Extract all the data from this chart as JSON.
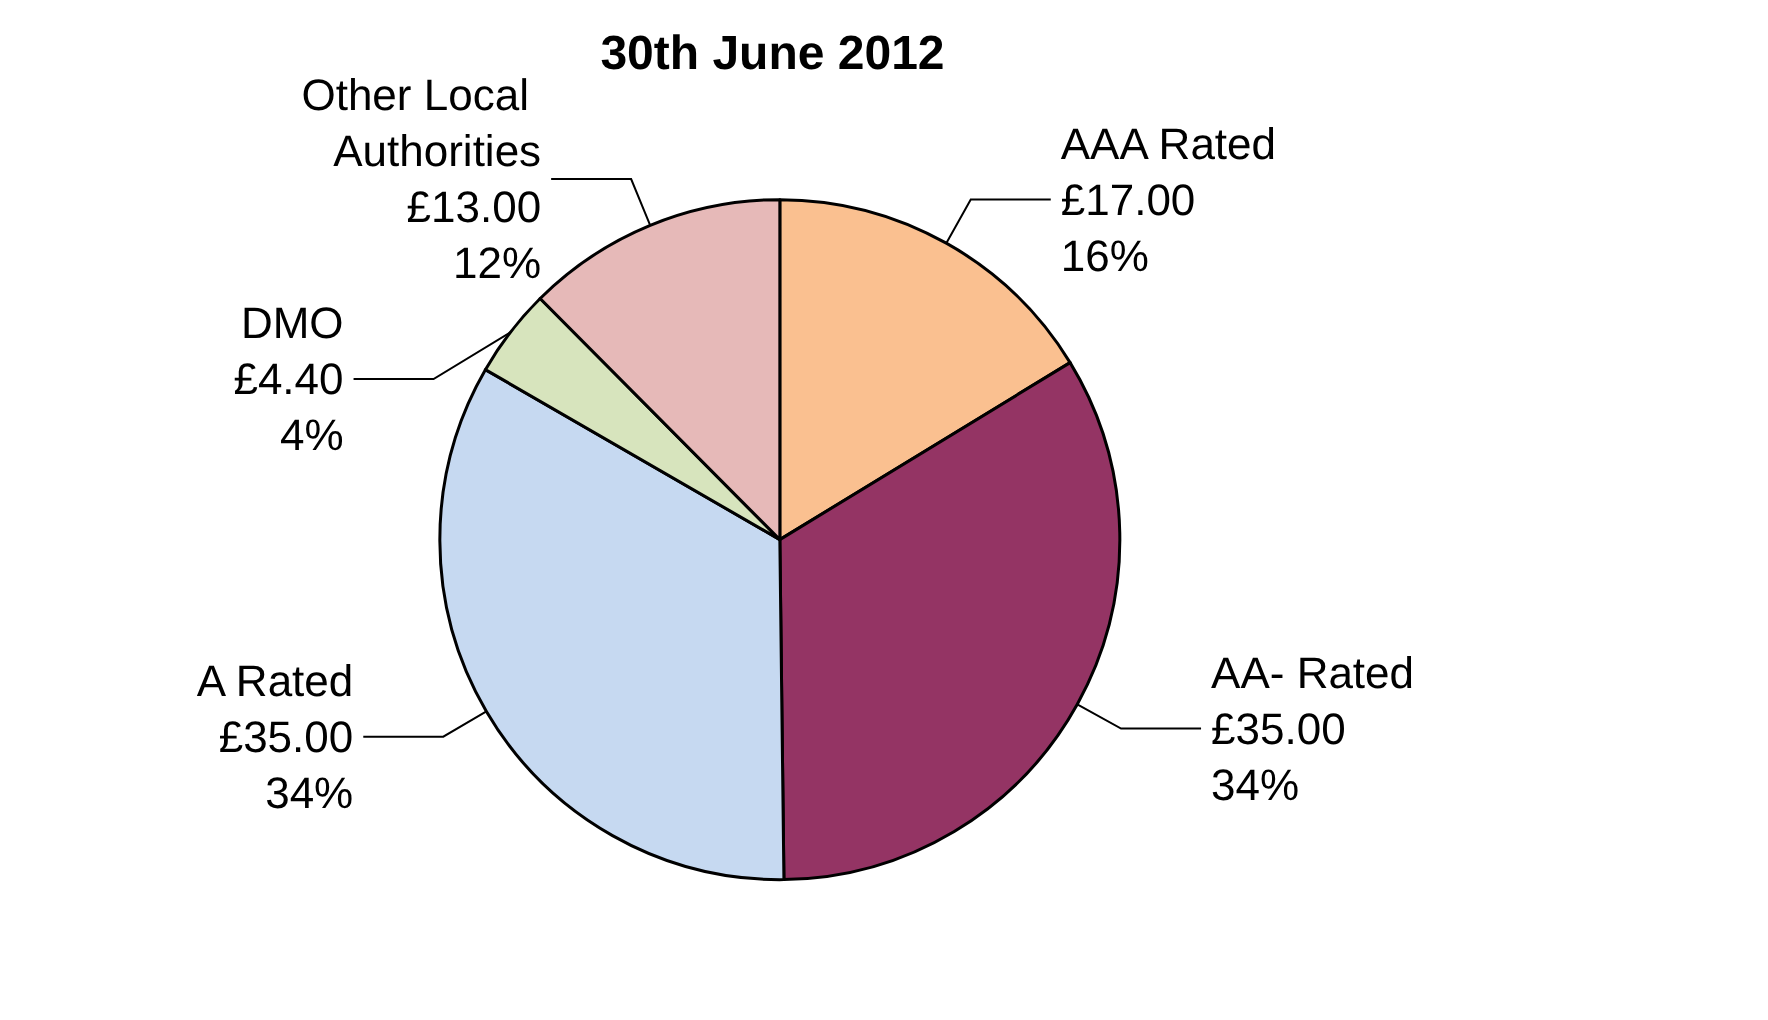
{
  "chart_data": {
    "type": "pie",
    "title": "30th June 2012",
    "categories": [
      "AAA Rated",
      "AA- Rated",
      "A Rated",
      "DMO",
      "Other Local Authorities"
    ],
    "values": [
      17,
      35,
      35,
      4.4,
      13
    ],
    "colors": [
      "#fac090",
      "#943464",
      "#c6d9f1",
      "#d7e4bd",
      "#e6b9b8"
    ],
    "value_labels": [
      "£17.00\n16%",
      "£35.00\n34%",
      "£35.00\n34%",
      "£4.40\n4%",
      "£13.00\n12%"
    ],
    "legend": false
  }
}
